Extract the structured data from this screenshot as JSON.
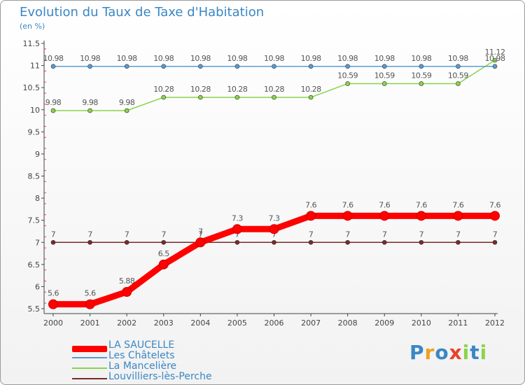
{
  "header": {
    "title": "Evolution du Taux de Taxe d'Habitation",
    "unit": "(en %)"
  },
  "chart_data": {
    "type": "line",
    "title": "Evolution du Taux de Taxe d'Habitation",
    "ylabel": "(en %)",
    "xlabel": "",
    "categories": [
      "2000",
      "2001",
      "2002",
      "2003",
      "2004",
      "2005",
      "2006",
      "2007",
      "2008",
      "2009",
      "2010",
      "2011",
      "2012"
    ],
    "ylim": [
      5.5,
      11.5
    ],
    "yticks": [
      "5.5",
      "6",
      "6.5",
      "7",
      "7.5",
      "8",
      "8.5",
      "9",
      "9.5",
      "10",
      "10.5",
      "11",
      "11.5"
    ],
    "grid": false,
    "legend_position": "bottom-left",
    "series": [
      {
        "name": "Louvilliers-lès-Perche",
        "color": "#7a2a2a",
        "values": [
          7,
          7,
          7,
          7,
          7,
          7,
          7,
          7,
          7,
          7,
          7,
          7,
          7
        ],
        "labels": [
          "7",
          "7",
          "7",
          "7",
          "7",
          "7",
          "7",
          "7",
          "7",
          "7",
          "7",
          "7",
          "7"
        ]
      },
      {
        "name": "La Mancelière",
        "color": "#8ad44a",
        "values": [
          9.98,
          9.98,
          9.98,
          10.28,
          10.28,
          10.28,
          10.28,
          10.28,
          10.59,
          10.59,
          10.59,
          10.59,
          11.12
        ],
        "labels": [
          "9.98",
          "9.98",
          "9.98",
          "10.28",
          "10.28",
          "10.28",
          "10.28",
          "10.28",
          "10.59",
          "10.59",
          "10.59",
          "10.59",
          "11.12"
        ]
      },
      {
        "name": "Les Châtelets",
        "color": "#5b9bd0",
        "values": [
          10.98,
          10.98,
          10.98,
          10.98,
          10.98,
          10.98,
          10.98,
          10.98,
          10.98,
          10.98,
          10.98,
          10.98,
          10.98
        ],
        "labels": [
          "10.98",
          "10.98",
          "10.98",
          "10.98",
          "10.98",
          "10.98",
          "10.98",
          "10.98",
          "10.98",
          "10.98",
          "10.98",
          "10.98",
          "10.98"
        ]
      },
      {
        "name": "LA SAUCELLE",
        "color": "#ff0000",
        "values": [
          5.6,
          5.6,
          5.88,
          6.5,
          7,
          7.3,
          7.3,
          7.6,
          7.6,
          7.6,
          7.6,
          7.6,
          7.6
        ],
        "labels": [
          "5.6",
          "5.6",
          "5.88",
          "6.5",
          "7",
          "7.3",
          "7.3",
          "7.6",
          "7.6",
          "7.6",
          "7.6",
          "7.6",
          "7.6"
        ]
      }
    ]
  },
  "legend": [
    {
      "label": "LA SAUCELLE",
      "color": "#ff0000"
    },
    {
      "label": "Les Châtelets",
      "color": "#5b9bd0"
    },
    {
      "label": "La Mancelière",
      "color": "#8ad44a"
    },
    {
      "label": "Louvilliers-lès-Perche",
      "color": "#7a2a2a"
    }
  ],
  "logo": {
    "letters": [
      "P",
      "r",
      "o",
      "x",
      "i",
      "t",
      "i"
    ],
    "colors": [
      "#3a87c4",
      "#f0a020",
      "#3a87c4",
      "#e8402a",
      "#8ad44a",
      "#3a87c4",
      "#8ad44a"
    ]
  }
}
